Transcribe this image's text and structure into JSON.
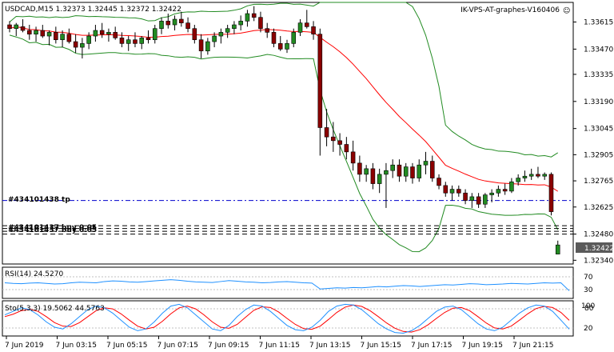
{
  "header": {
    "symbol_line": "USDCAD,M15  1.32373 1.32445 1.32372 1.32422",
    "server_label": "IK-VPS-AT-graphes-V160406",
    "smiley_glyph": "☺"
  },
  "price_axis": {
    "ticks": [
      "1.33615",
      "1.33470",
      "1.33335",
      "1.33190",
      "1.33045",
      "1.32905",
      "1.32765",
      "1.32625",
      "1.32480",
      "1.32340"
    ],
    "current_price": "1.32422",
    "current_price_color": "#5a5a5a"
  },
  "order_labels": {
    "tp_label": "#434101438 tp",
    "stack_label": "#434101437 buy 0.05"
  },
  "rsi_panel": {
    "label": "RSI(14) 24.5270",
    "levels": [
      "70",
      "30"
    ],
    "color": "#1e90ff"
  },
  "stoch_panel": {
    "label": "Sto(5,3,3) 19.5062 44.5763",
    "levels": [
      "100",
      "80",
      "20"
    ],
    "main_color": "#1e90ff",
    "signal_color": "#ff0000"
  },
  "time_axis": {
    "labels": [
      "7 Jun 2019",
      "7 Jun 03:15",
      "7 Jun 05:15",
      "7 Jun 07:15",
      "7 Jun 09:15",
      "7 Jun 11:15",
      "7 Jun 13:15",
      "7 Jun 15:15",
      "7 Jun 17:15",
      "7 Jun 19:15",
      "7 Jun 21:15"
    ]
  },
  "colors": {
    "bull_candle": "#228b22",
    "bear_candle": "#8b0000",
    "bollinger": "#228b22",
    "moving_average": "#ff0000",
    "order_line": "#0000cd"
  },
  "chart_data": {
    "type": "candlestick",
    "symbol": "USDCAD",
    "timeframe": "M15",
    "ylim": [
      1.3232,
      1.3372
    ],
    "candles": [
      [
        1.336,
        1.3362,
        1.3356,
        1.3358
      ],
      [
        1.3358,
        1.3361,
        1.3354,
        1.336
      ],
      [
        1.3359,
        1.3363,
        1.3356,
        1.3357
      ],
      [
        1.3357,
        1.336,
        1.3352,
        1.3355
      ],
      [
        1.3355,
        1.3359,
        1.3351,
        1.3357
      ],
      [
        1.3357,
        1.336,
        1.3353,
        1.3354
      ],
      [
        1.3354,
        1.3357,
        1.3349,
        1.3356
      ],
      [
        1.3356,
        1.3359,
        1.335,
        1.3352
      ],
      [
        1.3352,
        1.3357,
        1.3348,
        1.3355
      ],
      [
        1.3355,
        1.3358,
        1.335,
        1.3351
      ],
      [
        1.3351,
        1.3355,
        1.3345,
        1.3348
      ],
      [
        1.3348,
        1.3353,
        1.3342,
        1.335
      ],
      [
        1.335,
        1.3356,
        1.3347,
        1.3354
      ],
      [
        1.3354,
        1.336,
        1.3351,
        1.3357
      ],
      [
        1.3357,
        1.3361,
        1.3353,
        1.3355
      ],
      [
        1.3355,
        1.3358,
        1.3351,
        1.3356
      ],
      [
        1.3356,
        1.3359,
        1.3352,
        1.3353
      ],
      [
        1.3353,
        1.3356,
        1.3348,
        1.335
      ],
      [
        1.335,
        1.3354,
        1.3346,
        1.3352
      ],
      [
        1.3352,
        1.3356,
        1.3348,
        1.335
      ],
      [
        1.335,
        1.3354,
        1.3347,
        1.3353
      ],
      [
        1.3353,
        1.3357,
        1.335,
        1.3352
      ],
      [
        1.3352,
        1.336,
        1.335,
        1.3358
      ],
      [
        1.3358,
        1.3364,
        1.3355,
        1.3362
      ],
      [
        1.3362,
        1.3366,
        1.3358,
        1.336
      ],
      [
        1.336,
        1.3365,
        1.3357,
        1.3363
      ],
      [
        1.3363,
        1.3367,
        1.3359,
        1.3361
      ],
      [
        1.3361,
        1.3364,
        1.3356,
        1.3358
      ],
      [
        1.3358,
        1.336,
        1.335,
        1.3352
      ],
      [
        1.3352,
        1.3355,
        1.3342,
        1.3346
      ],
      [
        1.3346,
        1.3353,
        1.3344,
        1.3351
      ],
      [
        1.3351,
        1.3356,
        1.3348,
        1.3354
      ],
      [
        1.3354,
        1.3358,
        1.335,
        1.3356
      ],
      [
        1.3356,
        1.336,
        1.3353,
        1.3358
      ],
      [
        1.3358,
        1.3362,
        1.3355,
        1.336
      ],
      [
        1.336,
        1.3365,
        1.3357,
        1.3362
      ],
      [
        1.3362,
        1.3368,
        1.3359,
        1.3366
      ],
      [
        1.3366,
        1.337,
        1.3362,
        1.3364
      ],
      [
        1.3364,
        1.3367,
        1.3356,
        1.3358
      ],
      [
        1.3358,
        1.3361,
        1.3353,
        1.3356
      ],
      [
        1.3356,
        1.3358,
        1.3348,
        1.335
      ],
      [
        1.335,
        1.3354,
        1.3346,
        1.3347
      ],
      [
        1.3347,
        1.3352,
        1.3345,
        1.335
      ],
      [
        1.335,
        1.3358,
        1.3348,
        1.3356
      ],
      [
        1.3356,
        1.3363,
        1.3354,
        1.3361
      ],
      [
        1.3361,
        1.3368,
        1.3358,
        1.3359
      ],
      [
        1.3359,
        1.3362,
        1.3352,
        1.3355
      ],
      [
        1.3355,
        1.3358,
        1.329,
        1.3305
      ],
      [
        1.3305,
        1.3315,
        1.3295,
        1.33
      ],
      [
        1.33,
        1.3308,
        1.3292,
        1.3298
      ],
      [
        1.3298,
        1.3302,
        1.329,
        1.3296
      ],
      [
        1.3296,
        1.33,
        1.3288,
        1.3292
      ],
      [
        1.3292,
        1.3298,
        1.3282,
        1.3286
      ],
      [
        1.3286,
        1.329,
        1.3276,
        1.328
      ],
      [
        1.328,
        1.3285,
        1.3276,
        1.3283
      ],
      [
        1.3283,
        1.3286,
        1.3272,
        1.3275
      ],
      [
        1.3275,
        1.3283,
        1.327,
        1.328
      ],
      [
        1.328,
        1.3286,
        1.3262,
        1.3282
      ],
      [
        1.3282,
        1.3288,
        1.3278,
        1.3285
      ],
      [
        1.3285,
        1.3288,
        1.3276,
        1.3279
      ],
      [
        1.3279,
        1.3286,
        1.3276,
        1.3284
      ],
      [
        1.3284,
        1.3286,
        1.3275,
        1.3278
      ],
      [
        1.3278,
        1.3288,
        1.3276,
        1.3285
      ],
      [
        1.3285,
        1.3292,
        1.328,
        1.3287
      ],
      [
        1.3287,
        1.329,
        1.3276,
        1.3278
      ],
      [
        1.3278,
        1.328,
        1.3272,
        1.3274
      ],
      [
        1.3274,
        1.3276,
        1.3268,
        1.327
      ],
      [
        1.327,
        1.3274,
        1.3266,
        1.3272
      ],
      [
        1.3272,
        1.3274,
        1.3268,
        1.327
      ],
      [
        1.327,
        1.3272,
        1.3264,
        1.3266
      ],
      [
        1.3266,
        1.327,
        1.3262,
        1.3268
      ],
      [
        1.3268,
        1.327,
        1.3262,
        1.3264
      ],
      [
        1.3264,
        1.327,
        1.3262,
        1.3269
      ],
      [
        1.3269,
        1.3272,
        1.3265,
        1.327
      ],
      [
        1.327,
        1.3274,
        1.3268,
        1.3272
      ],
      [
        1.3272,
        1.3275,
        1.3269,
        1.3271
      ],
      [
        1.3271,
        1.3278,
        1.327,
        1.3276
      ],
      [
        1.3276,
        1.328,
        1.3274,
        1.3278
      ],
      [
        1.3278,
        1.3282,
        1.3276,
        1.3279
      ],
      [
        1.3279,
        1.3283,
        1.3277,
        1.328
      ],
      [
        1.328,
        1.3284,
        1.3278,
        1.3279
      ],
      [
        1.3279,
        1.3281,
        1.3277,
        1.328
      ],
      [
        1.328,
        1.3281,
        1.3258,
        1.326
      ],
      [
        1.32373,
        1.32445,
        1.32372,
        1.32422
      ]
    ],
    "tp_level": 1.3266,
    "order_levels": [
      1.32525,
      1.3251,
      1.32495,
      1.3248
    ],
    "rsi": {
      "range": [
        0,
        100
      ],
      "levels": [
        70,
        30
      ],
      "current": 24.527,
      "values": [
        50,
        48,
        47,
        49,
        50,
        48,
        46,
        47,
        50,
        52,
        51,
        50,
        54,
        56,
        55,
        53,
        52,
        54,
        56,
        58,
        60,
        58,
        55,
        53,
        52,
        51,
        54,
        57,
        55,
        53,
        52,
        50,
        51,
        53,
        54,
        52,
        50,
        49,
        30,
        32,
        34,
        33,
        35,
        34,
        36,
        38,
        37,
        39,
        41,
        40,
        38,
        40,
        42,
        44,
        43,
        45,
        47,
        46,
        44,
        45,
        46,
        48,
        47,
        46,
        48,
        50,
        49,
        50,
        24.527
      ]
    },
    "stochastic": {
      "range": [
        0,
        100
      ],
      "levels": [
        100,
        80,
        20
      ],
      "main_current": 19.5062,
      "signal_current": 44.5763,
      "main": [
        60,
        70,
        80,
        75,
        60,
        40,
        25,
        20,
        35,
        55,
        75,
        85,
        80,
        65,
        45,
        25,
        15,
        20,
        40,
        65,
        85,
        90,
        80,
        60,
        40,
        20,
        15,
        30,
        55,
        75,
        88,
        85,
        70,
        50,
        30,
        18,
        15,
        25,
        45,
        70,
        85,
        90,
        88,
        75,
        55,
        35,
        20,
        10,
        8,
        15,
        30,
        50,
        70,
        82,
        85,
        75,
        55,
        35,
        20,
        15,
        25,
        45,
        65,
        80,
        88,
        85,
        70,
        45,
        19.5062
      ],
      "signal": [
        55,
        62,
        72,
        76,
        70,
        55,
        38,
        28,
        27,
        38,
        55,
        72,
        80,
        77,
        63,
        45,
        28,
        20,
        25,
        42,
        63,
        80,
        85,
        77,
        60,
        40,
        25,
        22,
        33,
        53,
        73,
        83,
        81,
        68,
        50,
        33,
        21,
        19,
        28,
        47,
        67,
        82,
        88,
        84,
        72,
        55,
        37,
        22,
        13,
        11,
        18,
        32,
        50,
        67,
        79,
        81,
        72,
        55,
        37,
        23,
        20,
        28,
        45,
        63,
        78,
        84,
        81,
        67,
        44.5763
      ]
    }
  }
}
